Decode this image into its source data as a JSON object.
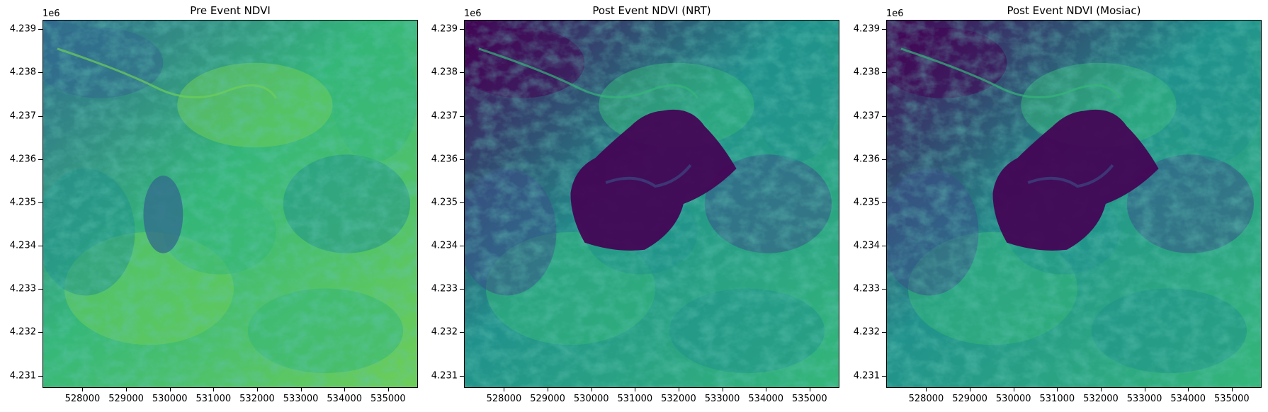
{
  "chart_data": [
    {
      "type": "heatmap",
      "title": "Pre Event NDVI",
      "colormap": "viridis",
      "y_offset_label": "1e6",
      "xlim": [
        527100,
        535700
      ],
      "ylim": [
        4230700,
        4239200
      ],
      "x_ticks": [
        528000,
        529000,
        530000,
        531000,
        532000,
        533000,
        534000,
        535000
      ],
      "y_ticks": [
        4.231,
        4.232,
        4.233,
        4.234,
        4.235,
        4.236,
        4.237,
        4.238,
        4.239
      ],
      "burn_scar_visible": false,
      "dominant_colors": [
        "#31688e",
        "#21918c",
        "#35b779",
        "#6ece58"
      ]
    },
    {
      "type": "heatmap",
      "title": "Post Event NDVI (NRT)",
      "colormap": "viridis",
      "y_offset_label": "1e6",
      "xlim": [
        527100,
        535700
      ],
      "ylim": [
        4230700,
        4239200
      ],
      "x_ticks": [
        528000,
        529000,
        530000,
        531000,
        532000,
        533000,
        534000,
        535000
      ],
      "y_ticks": [
        4.231,
        4.232,
        4.233,
        4.234,
        4.235,
        4.236,
        4.237,
        4.238,
        4.239
      ],
      "burn_scar_visible": true,
      "dominant_colors": [
        "#440154",
        "#3b528b",
        "#21918c",
        "#35b779"
      ]
    },
    {
      "type": "heatmap",
      "title": "Post Event NDVI (Mosiac)",
      "colormap": "viridis",
      "y_offset_label": "1e6",
      "xlim": [
        527100,
        535700
      ],
      "ylim": [
        4230700,
        4239200
      ],
      "x_ticks": [
        528000,
        529000,
        530000,
        531000,
        532000,
        533000,
        534000,
        535000
      ],
      "y_ticks": [
        4.231,
        4.232,
        4.233,
        4.234,
        4.235,
        4.236,
        4.237,
        4.238,
        4.239
      ],
      "burn_scar_visible": true,
      "dominant_colors": [
        "#440154",
        "#3b528b",
        "#21918c",
        "#35b779"
      ]
    }
  ]
}
